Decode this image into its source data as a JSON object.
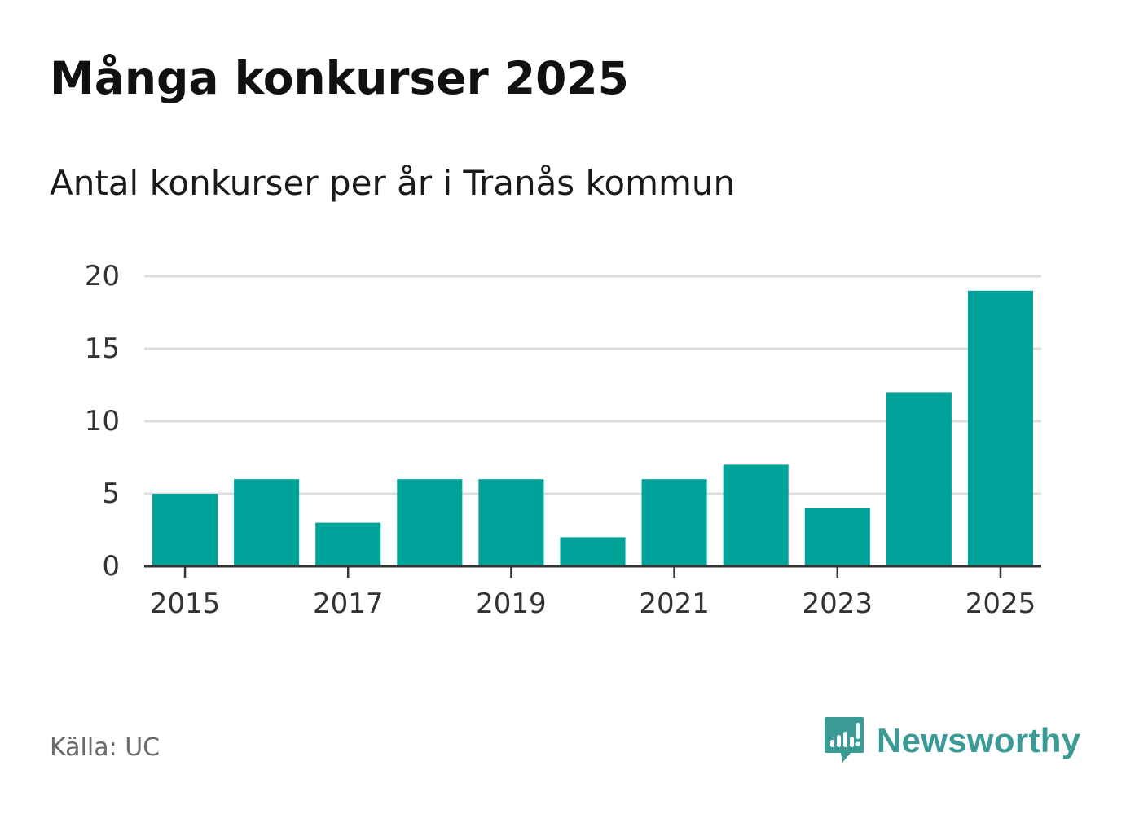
{
  "header": {
    "title": "Många konkurser 2025",
    "subtitle": "Antal konkurser per år i Tranås kommun"
  },
  "footer": {
    "source": "Källa: UC",
    "brand": "Newsworthy",
    "brand_icon": "newsworthy-logo-icon"
  },
  "colors": {
    "bar": "#00a39a",
    "grid": "#dddddd",
    "axis": "#333333",
    "tick_text": "#333333",
    "brand": "#3a9a96"
  },
  "chart_data": {
    "type": "bar",
    "title": "Många konkurser 2025",
    "subtitle": "Antal konkurser per år i Tranås kommun",
    "xlabel": "",
    "ylabel": "",
    "categories": [
      "2015",
      "2016",
      "2017",
      "2018",
      "2019",
      "2020",
      "2021",
      "2022",
      "2023",
      "2024",
      "2025"
    ],
    "values": [
      5,
      6,
      3,
      6,
      6,
      2,
      6,
      7,
      4,
      12,
      19
    ],
    "x_tick_labels": [
      "2015",
      "2017",
      "2019",
      "2021",
      "2023",
      "2025"
    ],
    "y_ticks": [
      0,
      5,
      10,
      15,
      20
    ],
    "ylim": [
      0,
      20
    ],
    "grid": true,
    "legend": "none"
  }
}
